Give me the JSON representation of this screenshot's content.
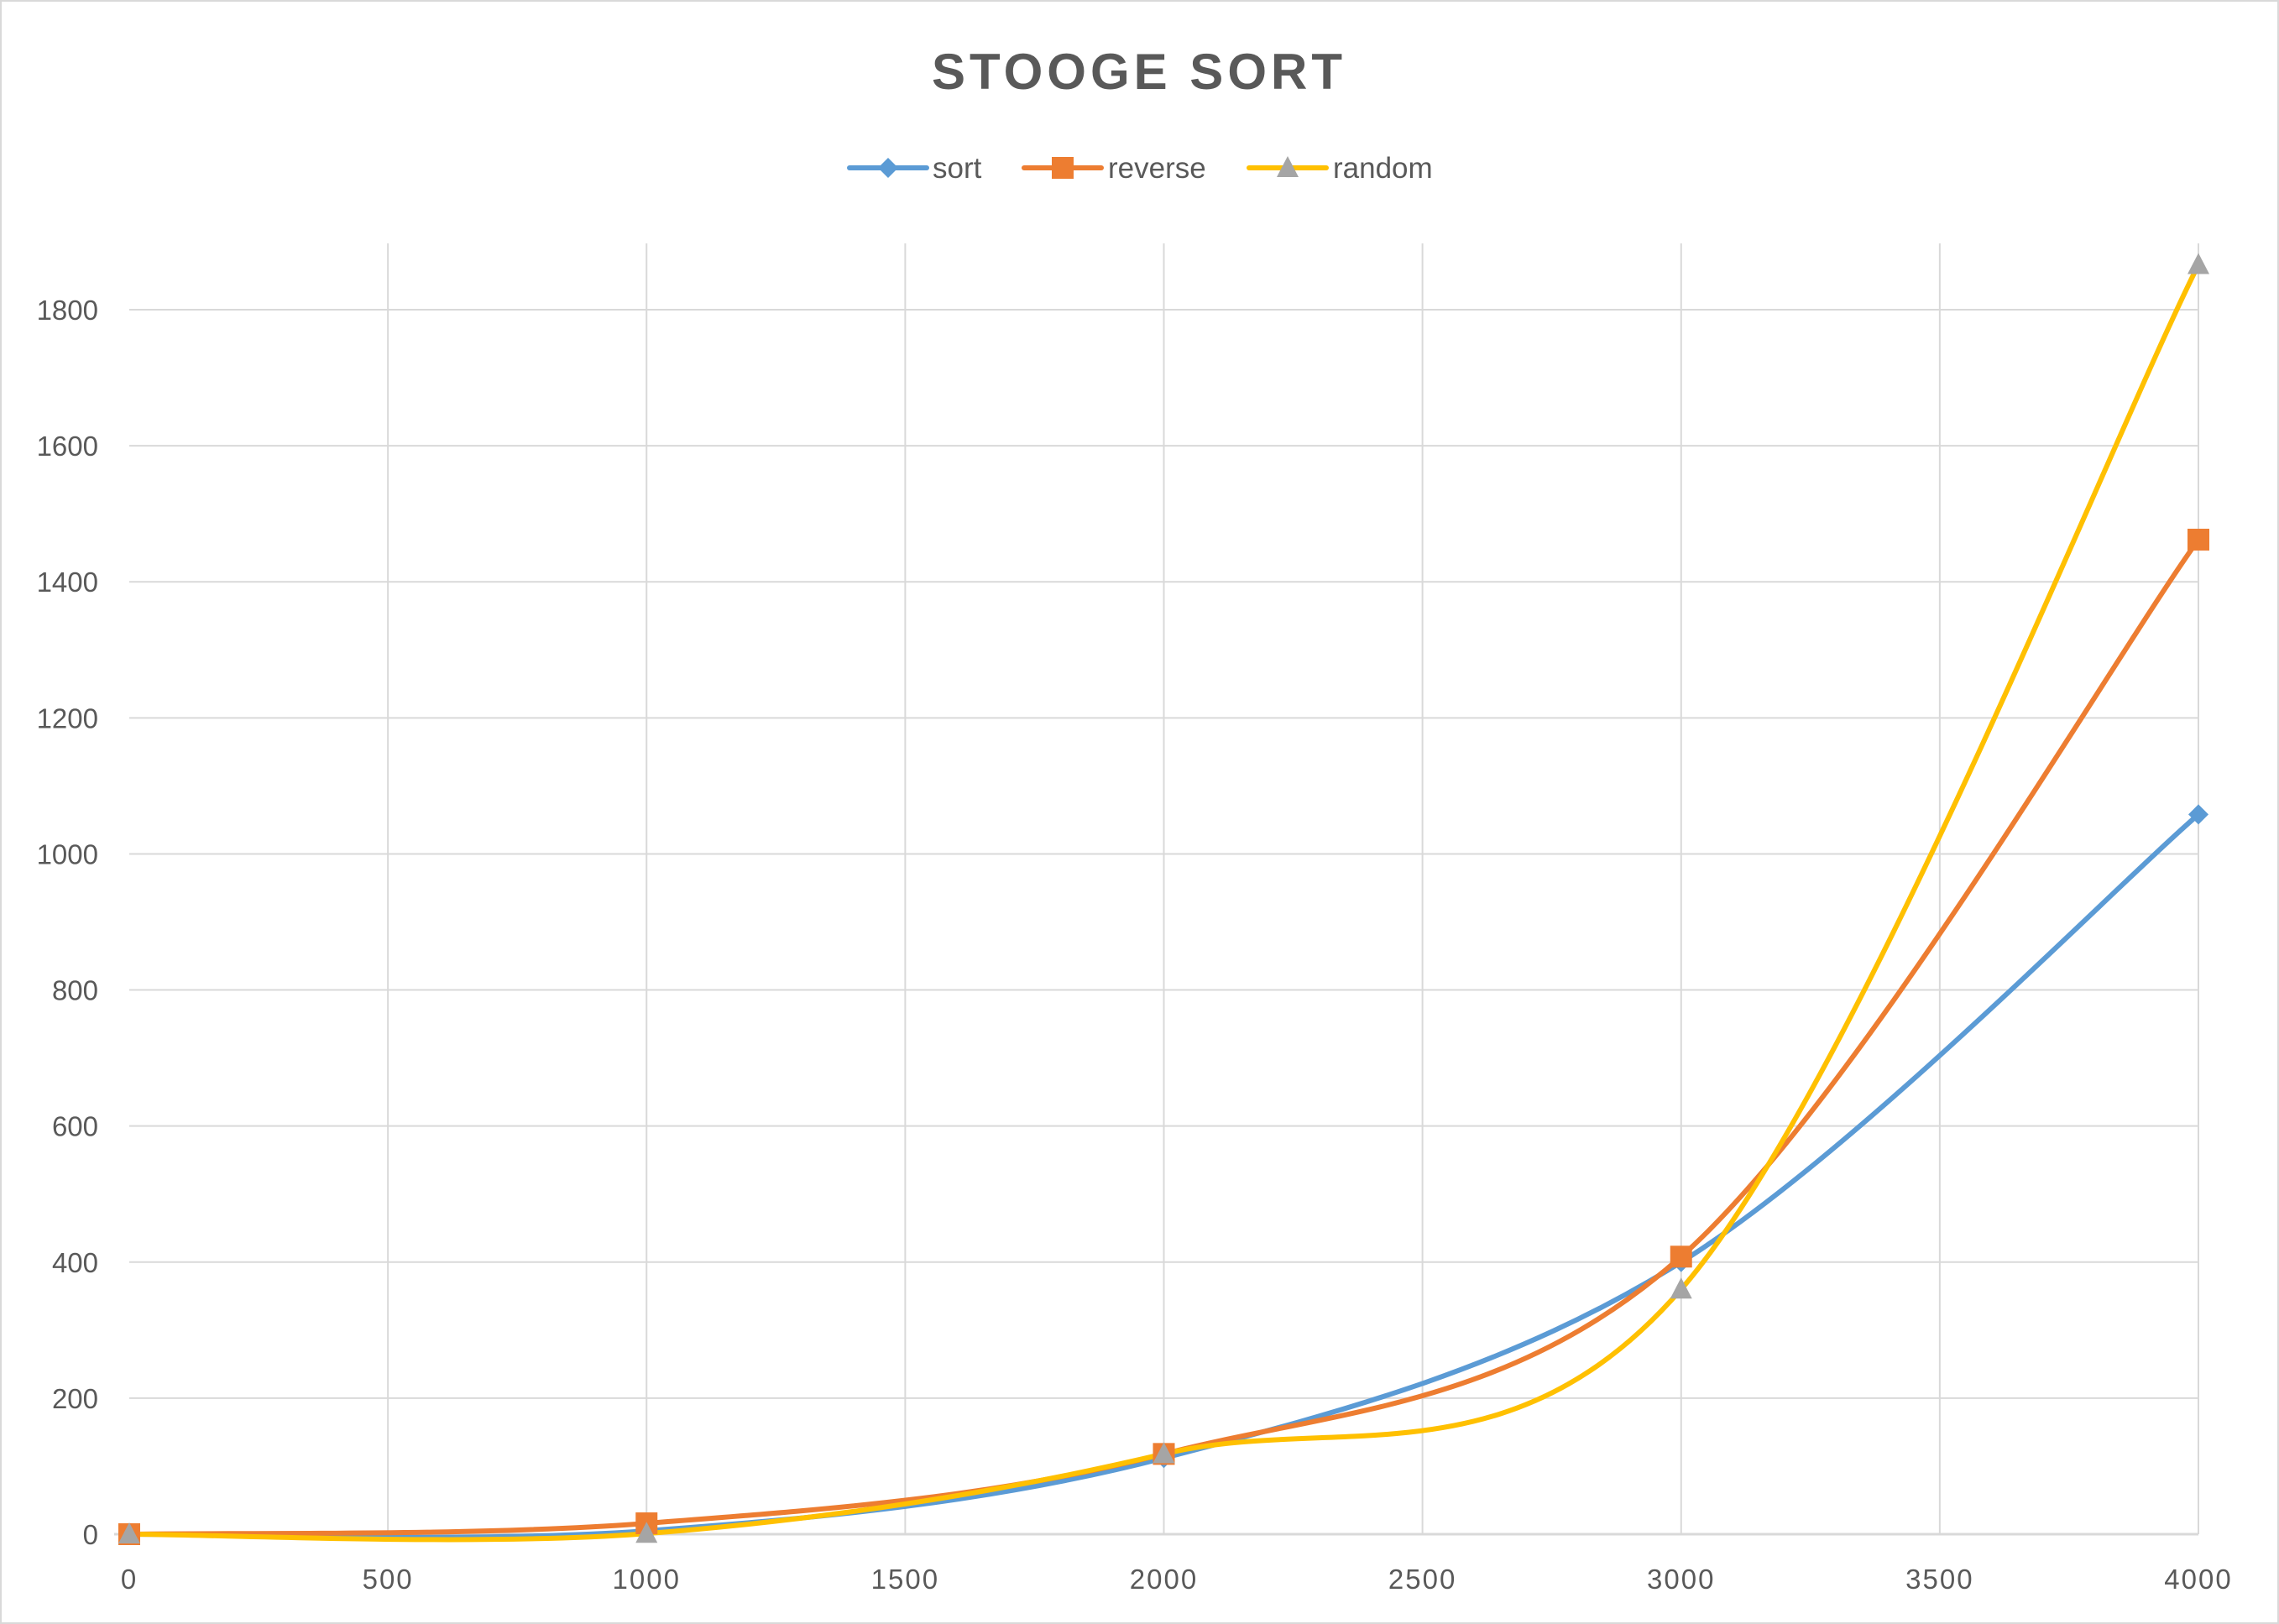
{
  "chart_data": {
    "type": "line",
    "title": "STOOGE SORT",
    "xlabel": "",
    "ylabel": "",
    "x": [
      0,
      1000,
      2000,
      3000,
      4000
    ],
    "series": [
      {
        "name": "sort",
        "color": "#5b9bd5",
        "marker": "diamond",
        "marker_color": "#5b9bd5",
        "values": [
          0,
          5,
          112,
          400,
          1058
        ]
      },
      {
        "name": "reverse",
        "color": "#ed7d31",
        "marker": "square",
        "marker_color": "#ed7d31",
        "values": [
          0,
          16,
          118,
          408,
          1462
        ]
      },
      {
        "name": "random",
        "color": "#ffc000",
        "marker": "triangle",
        "marker_color": "#a5a5a5",
        "values": [
          0,
          1,
          118,
          360,
          1866
        ]
      }
    ],
    "xlim": [
      0,
      4000
    ],
    "ylim": [
      0,
      1900
    ],
    "x_ticks": [
      "0",
      "500",
      "1000",
      "1500",
      "2000",
      "2500",
      "3000",
      "3500",
      "4000"
    ],
    "y_ticks": [
      "0",
      "200",
      "400",
      "600",
      "800",
      "1000",
      "1200",
      "1400",
      "1600",
      "1800"
    ],
    "grid": true,
    "smooth": true,
    "legend_position": "top"
  }
}
